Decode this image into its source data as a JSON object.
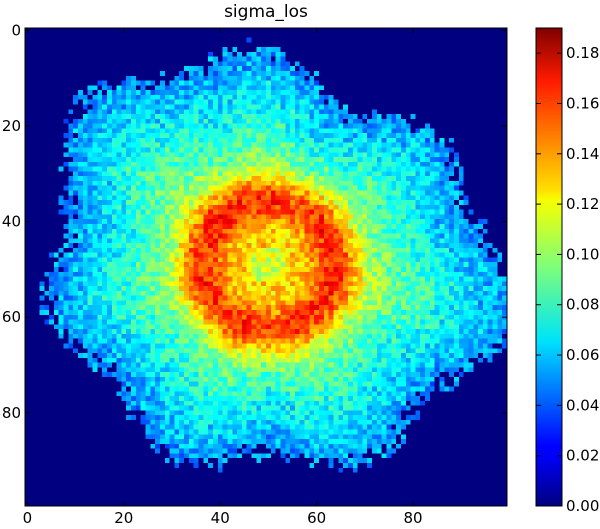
{
  "chart_data": {
    "type": "heatmap",
    "title": "sigma_los",
    "xlabel": "",
    "ylabel": "",
    "grid_size": [
      100,
      100
    ],
    "xlim": [
      0,
      99
    ],
    "ylim": [
      0,
      99
    ],
    "y_inverted": true,
    "x_ticks": [
      0,
      20,
      40,
      60,
      80
    ],
    "y_ticks": [
      0,
      20,
      40,
      60,
      80
    ],
    "x_tick_labels": [
      "0",
      "20",
      "40",
      "60",
      "80"
    ],
    "y_tick_labels": [
      "0",
      "20",
      "40",
      "60",
      "80"
    ],
    "colormap": "jet",
    "colorbar": {
      "min": 0.0,
      "max": 0.19,
      "ticks": [
        0.0,
        0.02,
        0.04,
        0.06,
        0.08,
        0.1,
        0.12,
        0.14,
        0.16,
        0.18
      ],
      "tick_labels": [
        "0.00",
        "0.02",
        "0.04",
        "0.06",
        "0.08",
        "0.10",
        "0.12",
        "0.14",
        "0.16",
        "0.18"
      ]
    },
    "structure": {
      "center": [
        50,
        49
      ],
      "center_value": 0.11,
      "ring_radius": 14,
      "ring_peak_value": 0.17,
      "outer_edge_value": 0.05,
      "background_value": 0.0
    }
  },
  "colors": {
    "background": "#00007f",
    "frame": "#000000"
  }
}
